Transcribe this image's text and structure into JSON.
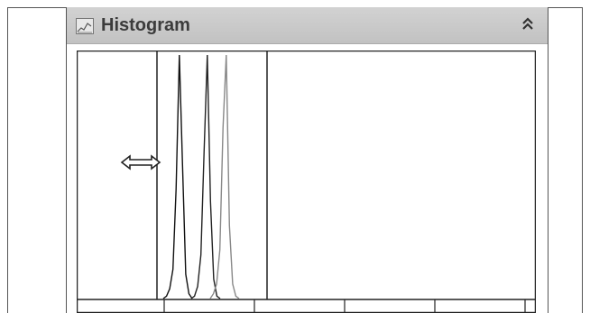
{
  "panel": {
    "title": "Histogram",
    "icon": "histogram-icon",
    "collapse_icon": "double-chevron-up-icon"
  },
  "chart_data": {
    "type": "line",
    "title": "",
    "xlabel": "",
    "ylabel": "",
    "grid": false,
    "series": [
      {
        "values": [
          0,
          1,
          4,
          12,
          45,
          100,
          55,
          10,
          2,
          0
        ]
      },
      {
        "values": [
          0,
          1,
          5,
          18,
          60,
          100,
          40,
          8,
          1,
          0
        ]
      },
      {
        "values": [
          0,
          2,
          6,
          20,
          70,
          100,
          30,
          6,
          1,
          0
        ]
      }
    ],
    "gate": {
      "label": "drag-handle"
    }
  }
}
